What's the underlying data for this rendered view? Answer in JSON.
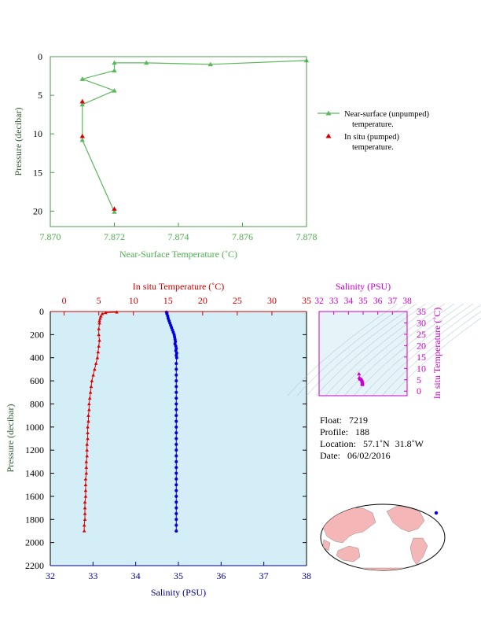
{
  "chart_data": [
    {
      "type": "line",
      "xlabel": "Near-Surface Temperature (˚C)",
      "ylabel": "Pressure (decibar)",
      "xlim": [
        7.87,
        7.878
      ],
      "ylim": [
        0,
        22
      ],
      "y_inverted": true,
      "x_ticks": [
        "7.870",
        "7.872",
        "7.874",
        "7.876",
        "7.878"
      ],
      "y_ticks": [
        "0",
        "5",
        "10",
        "15",
        "20"
      ],
      "legend_position": "right",
      "series": [
        {
          "name": "Near-surface (unpumped) temperature.",
          "color": "#5cb85c",
          "marker": "triangle",
          "points": [
            [
              7.878,
              0.5
            ],
            [
              7.875,
              1.0
            ],
            [
              7.873,
              0.8
            ],
            [
              7.872,
              0.8
            ],
            [
              7.872,
              1.8
            ],
            [
              7.871,
              2.9
            ],
            [
              7.872,
              4.4
            ],
            [
              7.871,
              6.2
            ],
            [
              7.871,
              10.8
            ],
            [
              7.872,
              20.1
            ]
          ]
        },
        {
          "name": "In situ (pumped) temperature.",
          "color": "#dd0000",
          "marker": "triangle",
          "points": [
            [
              7.871,
              5.8
            ],
            [
              7.871,
              10.3
            ],
            [
              7.872,
              19.7
            ]
          ]
        }
      ],
      "legend": {
        "line1_a": "Near-surface (unpumped)",
        "line1_b": "temperature.",
        "line2_a": "In situ (pumped)",
        "line2_b": "temperature."
      }
    },
    {
      "type": "line",
      "ylabel": "Pressure (decibar)",
      "ylim": [
        0,
        2200
      ],
      "y_inverted": true,
      "y_ticks": [
        "0",
        "200",
        "400",
        "600",
        "800",
        "1000",
        "1200",
        "1400",
        "1600",
        "1800",
        "2000",
        "2200"
      ],
      "background": "#d4eef7",
      "bottom_axis": {
        "label": "Salinity (PSU)",
        "color": "#00008b",
        "range": [
          32,
          38
        ],
        "ticks": [
          "32",
          "33",
          "34",
          "35",
          "36",
          "37",
          "38"
        ]
      },
      "top_axis": {
        "label": "In situ Temperature (˚C)",
        "color": "#cc0000",
        "range": [
          -2,
          35
        ],
        "ticks": [
          "0",
          "5",
          "10",
          "15",
          "20",
          "25",
          "30",
          "35"
        ]
      },
      "temperature_series": {
        "color": "#dd0000",
        "marker": "triangle",
        "points": [
          [
            7.6,
            5
          ],
          [
            6.0,
            10
          ],
          [
            5.5,
            20
          ],
          [
            5.3,
            40
          ],
          [
            5.2,
            60
          ],
          [
            5.1,
            80
          ],
          [
            5.1,
            100
          ],
          [
            5.0,
            150
          ],
          [
            5.0,
            200
          ],
          [
            5.1,
            250
          ],
          [
            5.0,
            300
          ],
          [
            4.9,
            350
          ],
          [
            4.8,
            400
          ],
          [
            4.6,
            450
          ],
          [
            4.4,
            500
          ],
          [
            4.2,
            550
          ],
          [
            4.0,
            600
          ],
          [
            3.9,
            650
          ],
          [
            3.8,
            700
          ],
          [
            3.7,
            750
          ],
          [
            3.6,
            800
          ],
          [
            3.6,
            850
          ],
          [
            3.5,
            900
          ],
          [
            3.5,
            950
          ],
          [
            3.4,
            1000
          ],
          [
            3.4,
            1050
          ],
          [
            3.4,
            1100
          ],
          [
            3.3,
            1150
          ],
          [
            3.3,
            1200
          ],
          [
            3.3,
            1250
          ],
          [
            3.2,
            1300
          ],
          [
            3.2,
            1350
          ],
          [
            3.2,
            1400
          ],
          [
            3.1,
            1450
          ],
          [
            3.1,
            1500
          ],
          [
            3.1,
            1550
          ],
          [
            3.1,
            1600
          ],
          [
            3.0,
            1650
          ],
          [
            3.0,
            1700
          ],
          [
            3.0,
            1750
          ],
          [
            3.0,
            1800
          ],
          [
            2.9,
            1850
          ],
          [
            2.9,
            1900
          ]
        ]
      },
      "salinity_series": {
        "color": "#0000dd",
        "marker": "circle",
        "points": [
          [
            34.72,
            5
          ],
          [
            34.73,
            20
          ],
          [
            34.75,
            40
          ],
          [
            34.76,
            60
          ],
          [
            34.78,
            80
          ],
          [
            34.8,
            100
          ],
          [
            34.82,
            120
          ],
          [
            34.84,
            140
          ],
          [
            34.86,
            160
          ],
          [
            34.88,
            180
          ],
          [
            34.9,
            200
          ],
          [
            34.91,
            220
          ],
          [
            34.92,
            240
          ],
          [
            34.93,
            260
          ],
          [
            34.92,
            280
          ],
          [
            34.94,
            300
          ],
          [
            34.95,
            320
          ],
          [
            34.94,
            340
          ],
          [
            34.96,
            360
          ],
          [
            34.95,
            380
          ],
          [
            34.96,
            400
          ],
          [
            34.95,
            450
          ],
          [
            34.95,
            500
          ],
          [
            34.95,
            550
          ],
          [
            34.95,
            600
          ],
          [
            34.95,
            650
          ],
          [
            34.95,
            700
          ],
          [
            34.95,
            750
          ],
          [
            34.95,
            800
          ],
          [
            34.95,
            850
          ],
          [
            34.95,
            900
          ],
          [
            34.95,
            950
          ],
          [
            34.95,
            1000
          ],
          [
            34.95,
            1050
          ],
          [
            34.95,
            1100
          ],
          [
            34.95,
            1150
          ],
          [
            34.95,
            1200
          ],
          [
            34.95,
            1250
          ],
          [
            34.95,
            1300
          ],
          [
            34.95,
            1350
          ],
          [
            34.95,
            1400
          ],
          [
            34.95,
            1450
          ],
          [
            34.95,
            1500
          ],
          [
            34.95,
            1550
          ],
          [
            34.95,
            1600
          ],
          [
            34.95,
            1650
          ],
          [
            34.95,
            1700
          ],
          [
            34.95,
            1750
          ],
          [
            34.95,
            1800
          ],
          [
            34.95,
            1850
          ],
          [
            34.95,
            1900
          ]
        ]
      }
    },
    {
      "type": "scatter",
      "xlabel": "Salinity (PSU)",
      "ylabel": "In situ Temperature (˚C)",
      "color": "#cc00cc",
      "xlim": [
        32,
        38
      ],
      "ylim": [
        -2,
        35
      ],
      "x_ticks": [
        "32",
        "33",
        "34",
        "35",
        "36",
        "37",
        "38"
      ],
      "y_ticks": [
        "0",
        "5",
        "10",
        "15",
        "20",
        "25",
        "30",
        "35"
      ],
      "points": [
        [
          34.95,
          2.9
        ],
        [
          34.95,
          3.2
        ],
        [
          34.95,
          3.5
        ],
        [
          34.95,
          3.9
        ],
        [
          34.94,
          4.2
        ],
        [
          34.93,
          4.6
        ],
        [
          34.92,
          5.0
        ],
        [
          34.9,
          5.1
        ],
        [
          34.86,
          5.2
        ],
        [
          34.82,
          5.3
        ],
        [
          34.78,
          5.5
        ],
        [
          34.74,
          6.0
        ],
        [
          34.72,
          7.6
        ]
      ]
    }
  ],
  "info": {
    "float_label": "Float:",
    "float_value": "7219",
    "profile_label": "Profile:",
    "profile_value": "188",
    "location_label": "Location:",
    "location_lat": "57.1˚N",
    "location_lon": "31.8˚W",
    "date_label": "Date:",
    "date_value": "06/02/2016"
  },
  "map": {
    "land_color": "#f4b6b6",
    "ocean_color": "#ffffff",
    "marker_color": "#0000ff",
    "marker_lon": -31.8,
    "marker_lat": 57.1
  }
}
